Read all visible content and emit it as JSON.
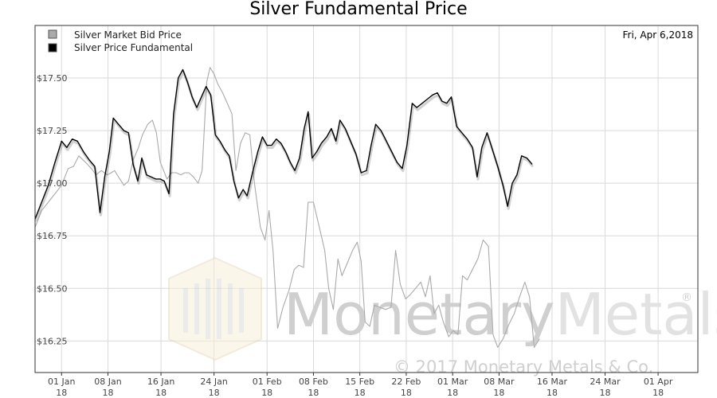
{
  "chart_data": {
    "type": "line",
    "title": "Silver Fundamental Price",
    "date_label": "Fri, Apr 6,2018",
    "xlabel": "",
    "ylabel": "",
    "ylim": [
      16.1,
      17.75
    ],
    "yticks": [
      16.25,
      16.5,
      16.75,
      17.0,
      17.25,
      17.5
    ],
    "ytick_labels": [
      "$16.25",
      "$16.50",
      "$16.75",
      "$17.00",
      "$17.25",
      "$17.50"
    ],
    "xlim": [
      -4,
      96
    ],
    "xticks": [
      {
        "day": 0,
        "line1": "01 Jan",
        "line2": "18"
      },
      {
        "day": 7,
        "line1": "08 Jan",
        "line2": "18"
      },
      {
        "day": 15,
        "line1": "16 Jan",
        "line2": "18"
      },
      {
        "day": 23,
        "line1": "24 Jan",
        "line2": "18"
      },
      {
        "day": 31,
        "line1": "01 Feb",
        "line2": "18"
      },
      {
        "day": 38,
        "line1": "08 Feb",
        "line2": "18"
      },
      {
        "day": 45,
        "line1": "15 Feb",
        "line2": "18"
      },
      {
        "day": 52,
        "line1": "22 Feb",
        "line2": "18"
      },
      {
        "day": 59,
        "line1": "01 Mar",
        "line2": "18"
      },
      {
        "day": 66,
        "line1": "08 Mar",
        "line2": "18"
      },
      {
        "day": 74,
        "line1": "16 Mar",
        "line2": "18"
      },
      {
        "day": 82,
        "line1": "24 Mar",
        "line2": "18"
      },
      {
        "day": 90,
        "line1": "01 Apr",
        "line2": "18"
      }
    ],
    "grid": true,
    "legend_position": "top-left",
    "series": [
      {
        "name": "Silver Market Bid Price",
        "color": "#aaaaaa",
        "points": [
          [
            -4.0,
            16.79
          ],
          [
            -3.0,
            16.87
          ],
          [
            -2.0,
            16.91
          ],
          [
            -1.0,
            16.95
          ],
          [
            0.0,
            16.99
          ],
          [
            1.0,
            17.07
          ],
          [
            1.8,
            17.08
          ],
          [
            2.6,
            17.13
          ],
          [
            3.6,
            17.1
          ],
          [
            4.5,
            17.07
          ],
          [
            5.2,
            17.04
          ],
          [
            6.0,
            17.06
          ],
          [
            6.9,
            17.04
          ],
          [
            7.5,
            17.05
          ],
          [
            8.0,
            17.06
          ],
          [
            8.6,
            17.03
          ],
          [
            9.4,
            16.99
          ],
          [
            10.1,
            17.01
          ],
          [
            10.8,
            17.11
          ],
          [
            11.6,
            17.17
          ],
          [
            12.2,
            17.23
          ],
          [
            13.0,
            17.28
          ],
          [
            13.7,
            17.3
          ],
          [
            14.3,
            17.24
          ],
          [
            14.9,
            17.1
          ],
          [
            15.4,
            17.06
          ],
          [
            15.9,
            17.02
          ],
          [
            16.6,
            17.05
          ],
          [
            17.3,
            17.05
          ],
          [
            18.0,
            17.04
          ],
          [
            18.6,
            17.05
          ],
          [
            19.2,
            17.05
          ],
          [
            19.9,
            17.03
          ],
          [
            20.6,
            17.0
          ],
          [
            21.2,
            17.06
          ],
          [
            21.9,
            17.48
          ],
          [
            22.4,
            17.55
          ],
          [
            23.0,
            17.52
          ],
          [
            23.6,
            17.47
          ],
          [
            24.3,
            17.43
          ],
          [
            25.0,
            17.38
          ],
          [
            25.7,
            17.33
          ],
          [
            26.3,
            17.06
          ],
          [
            27.0,
            17.19
          ],
          [
            27.7,
            17.24
          ],
          [
            28.4,
            17.23
          ],
          [
            29.1,
            17.0
          ],
          [
            30.0,
            16.79
          ],
          [
            30.7,
            16.73
          ],
          [
            31.3,
            16.87
          ],
          [
            31.9,
            16.68
          ],
          [
            32.6,
            16.31
          ],
          [
            33.4,
            16.41
          ],
          [
            34.3,
            16.49
          ],
          [
            35.1,
            16.59
          ],
          [
            35.8,
            16.61
          ],
          [
            36.5,
            16.6
          ],
          [
            37.2,
            16.91
          ],
          [
            38.0,
            16.91
          ],
          [
            38.9,
            16.79
          ],
          [
            39.7,
            16.68
          ],
          [
            40.3,
            16.5
          ],
          [
            41.0,
            16.4
          ],
          [
            41.7,
            16.64
          ],
          [
            42.3,
            16.56
          ],
          [
            43.1,
            16.62
          ],
          [
            43.9,
            16.68
          ],
          [
            44.6,
            16.72
          ],
          [
            45.2,
            16.63
          ],
          [
            45.8,
            16.34
          ],
          [
            46.5,
            16.32
          ],
          [
            47.2,
            16.42
          ],
          [
            48.0,
            16.41
          ],
          [
            48.9,
            16.4
          ],
          [
            49.7,
            16.41
          ],
          [
            50.4,
            16.68
          ],
          [
            51.1,
            16.52
          ],
          [
            51.9,
            16.45
          ],
          [
            52.6,
            16.47
          ],
          [
            53.4,
            16.5
          ],
          [
            54.2,
            16.53
          ],
          [
            54.9,
            16.46
          ],
          [
            55.6,
            16.56
          ],
          [
            56.2,
            16.38
          ],
          [
            56.9,
            16.42
          ],
          [
            57.6,
            16.34
          ],
          [
            58.4,
            16.27
          ],
          [
            59.1,
            16.3
          ],
          [
            59.8,
            16.28
          ],
          [
            60.5,
            16.56
          ],
          [
            61.2,
            16.54
          ],
          [
            62.0,
            16.59
          ],
          [
            62.8,
            16.64
          ],
          [
            63.6,
            16.73
          ],
          [
            64.4,
            16.7
          ],
          [
            65.1,
            16.28
          ],
          [
            65.8,
            16.22
          ],
          [
            66.6,
            16.26
          ],
          [
            67.5,
            16.33
          ],
          [
            68.3,
            16.38
          ],
          [
            69.1,
            16.46
          ],
          [
            69.9,
            16.53
          ],
          [
            70.6,
            16.46
          ],
          [
            71.3,
            16.22
          ],
          [
            72.1,
            16.26
          ]
        ]
      },
      {
        "name": "Silver Price Fundamental",
        "color": "#000000",
        "points": [
          [
            -4.0,
            16.83
          ],
          [
            -3.0,
            16.91
          ],
          [
            -2.0,
            16.99
          ],
          [
            -1.0,
            17.1
          ],
          [
            0.0,
            17.2
          ],
          [
            0.8,
            17.17
          ],
          [
            1.6,
            17.21
          ],
          [
            2.4,
            17.2
          ],
          [
            3.3,
            17.15
          ],
          [
            4.2,
            17.11
          ],
          [
            5.0,
            17.08
          ],
          [
            5.8,
            16.86
          ],
          [
            6.5,
            17.03
          ],
          [
            7.2,
            17.15
          ],
          [
            7.8,
            17.31
          ],
          [
            8.6,
            17.28
          ],
          [
            9.4,
            17.25
          ],
          [
            10.1,
            17.24
          ],
          [
            10.8,
            17.09
          ],
          [
            11.5,
            17.01
          ],
          [
            12.1,
            17.12
          ],
          [
            12.8,
            17.04
          ],
          [
            13.5,
            17.03
          ],
          [
            14.2,
            17.02
          ],
          [
            14.9,
            17.02
          ],
          [
            15.5,
            17.01
          ],
          [
            16.2,
            16.95
          ],
          [
            16.9,
            17.33
          ],
          [
            17.6,
            17.5
          ],
          [
            18.3,
            17.54
          ],
          [
            19.0,
            17.48
          ],
          [
            19.7,
            17.41
          ],
          [
            20.4,
            17.36
          ],
          [
            21.1,
            17.41
          ],
          [
            21.8,
            17.46
          ],
          [
            22.5,
            17.42
          ],
          [
            23.2,
            17.23
          ],
          [
            23.9,
            17.2
          ],
          [
            24.6,
            17.16
          ],
          [
            25.3,
            17.13
          ],
          [
            26.0,
            17.01
          ],
          [
            26.7,
            16.93
          ],
          [
            27.4,
            16.97
          ],
          [
            28.0,
            16.94
          ],
          [
            28.8,
            17.05
          ],
          [
            29.6,
            17.15
          ],
          [
            30.3,
            17.22
          ],
          [
            31.0,
            17.18
          ],
          [
            31.7,
            17.18
          ],
          [
            32.4,
            17.21
          ],
          [
            33.1,
            17.19
          ],
          [
            33.8,
            17.15
          ],
          [
            34.5,
            17.1
          ],
          [
            35.2,
            17.06
          ],
          [
            35.9,
            17.12
          ],
          [
            36.6,
            17.26
          ],
          [
            37.2,
            17.34
          ],
          [
            37.8,
            17.12
          ],
          [
            38.5,
            17.15
          ],
          [
            39.2,
            17.19
          ],
          [
            40.0,
            17.22
          ],
          [
            40.7,
            17.26
          ],
          [
            41.4,
            17.2
          ],
          [
            42.0,
            17.3
          ],
          [
            42.8,
            17.26
          ],
          [
            43.6,
            17.2
          ],
          [
            44.4,
            17.14
          ],
          [
            45.2,
            17.05
          ],
          [
            46.0,
            17.06
          ],
          [
            46.7,
            17.18
          ],
          [
            47.4,
            17.28
          ],
          [
            48.2,
            17.25
          ],
          [
            49.0,
            17.2
          ],
          [
            49.8,
            17.15
          ],
          [
            50.6,
            17.1
          ],
          [
            51.4,
            17.07
          ],
          [
            52.1,
            17.18
          ],
          [
            52.9,
            17.38
          ],
          [
            53.6,
            17.36
          ],
          [
            54.4,
            17.38
          ],
          [
            55.2,
            17.4
          ],
          [
            56.0,
            17.42
          ],
          [
            56.7,
            17.43
          ],
          [
            57.4,
            17.39
          ],
          [
            58.1,
            17.38
          ],
          [
            58.8,
            17.41
          ],
          [
            59.6,
            17.27
          ],
          [
            60.4,
            17.24
          ],
          [
            61.2,
            17.21
          ],
          [
            62.0,
            17.17
          ],
          [
            62.7,
            17.03
          ],
          [
            63.4,
            17.17
          ],
          [
            64.2,
            17.24
          ],
          [
            65.0,
            17.16
          ],
          [
            65.8,
            17.08
          ],
          [
            66.6,
            16.99
          ],
          [
            67.3,
            16.89
          ],
          [
            68.0,
            17.0
          ],
          [
            68.7,
            17.04
          ],
          [
            69.4,
            17.13
          ],
          [
            70.2,
            17.12
          ],
          [
            71.0,
            17.09
          ]
        ]
      }
    ],
    "watermark": {
      "name": "Monetary",
      "suffix": "Metals",
      "registered": "®",
      "copyright": "© 2017 Monetary Metals & Co."
    }
  }
}
